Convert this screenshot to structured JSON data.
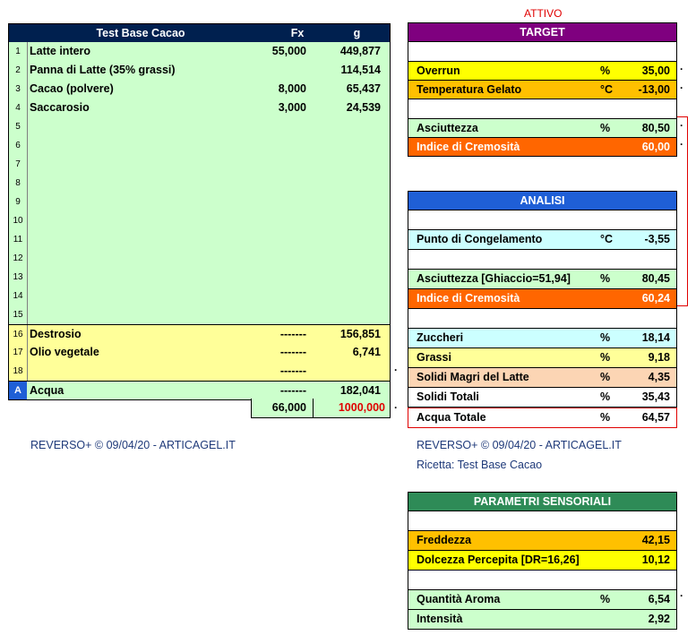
{
  "recipe": {
    "title": "Test Base Cacao",
    "col_fx": "Fx",
    "col_g": "g",
    "rows": [
      {
        "num": "1",
        "name": "Latte intero",
        "fx": "55,000",
        "g": "449,877"
      },
      {
        "num": "2",
        "name": "Panna di Latte (35% grassi)",
        "fx": "",
        "g": "114,514"
      },
      {
        "num": "3",
        "name": "Cacao (polvere)",
        "fx": "8,000",
        "g": "65,437"
      },
      {
        "num": "4",
        "name": "Saccarosio",
        "fx": "3,000",
        "g": "24,539"
      },
      {
        "num": "5",
        "name": "",
        "fx": "",
        "g": ""
      },
      {
        "num": "6",
        "name": "",
        "fx": "",
        "g": ""
      },
      {
        "num": "7",
        "name": "",
        "fx": "",
        "g": ""
      },
      {
        "num": "8",
        "name": "",
        "fx": "",
        "g": ""
      },
      {
        "num": "9",
        "name": "",
        "fx": "",
        "g": ""
      },
      {
        "num": "10",
        "name": "",
        "fx": "",
        "g": ""
      },
      {
        "num": "11",
        "name": "",
        "fx": "",
        "g": ""
      },
      {
        "num": "12",
        "name": "",
        "fx": "",
        "g": ""
      },
      {
        "num": "13",
        "name": "",
        "fx": "",
        "g": ""
      },
      {
        "num": "14",
        "name": "",
        "fx": "",
        "g": ""
      },
      {
        "num": "15",
        "name": "",
        "fx": "",
        "g": ""
      }
    ],
    "extra_rows": [
      {
        "num": "16",
        "name": "Destrosio",
        "fx": "-------",
        "g": "156,851"
      },
      {
        "num": "17",
        "name": "Olio vegetale",
        "fx": "-------",
        "g": "6,741"
      },
      {
        "num": "18",
        "name": "",
        "fx": "-------",
        "g": ""
      }
    ],
    "water_row": {
      "num": "A",
      "name": "Acqua",
      "fx": "-------",
      "g": "182,041"
    },
    "total_fx": "66,000",
    "total_g": "1000,000"
  },
  "footer_left": "REVERSO+ © 09/04/20 - ARTICAGEL.IT",
  "footer_right": "REVERSO+ © 09/04/20 - ARTICAGEL.IT",
  "ricetta": "Ricetta: Test Base Cacao",
  "attivo": "ATTIVO",
  "target": {
    "title": "TARGET",
    "overrun": {
      "label": "Overrun",
      "unit": "%",
      "value": "35,00"
    },
    "temp": {
      "label": "Temperatura Gelato",
      "unit": "°C",
      "value": "-13,00"
    },
    "asciuttezza": {
      "label": "Asciuttezza",
      "unit": "%",
      "value": "80,50"
    },
    "cremosita": {
      "label": "Indice di Cremosità",
      "unit": "",
      "value": "60,00"
    }
  },
  "analisi": {
    "title": "ANALISI",
    "congelamento": {
      "label": "Punto di Congelamento",
      "unit": "°C",
      "value": "-3,55"
    },
    "asciuttezza": {
      "label": "Asciuttezza [Ghiaccio=51,94]",
      "unit": "%",
      "value": "80,45"
    },
    "cremosita": {
      "label": "Indice di Cremosità",
      "unit": "",
      "value": "60,24"
    },
    "zuccheri": {
      "label": "Zuccheri",
      "unit": "%",
      "value": "18,14"
    },
    "grassi": {
      "label": "Grassi",
      "unit": "%",
      "value": "9,18"
    },
    "solidi_magri": {
      "label": "Solidi Magri del Latte",
      "unit": "%",
      "value": "4,35"
    },
    "solidi_totali": {
      "label": "Solidi Totali",
      "unit": "%",
      "value": "35,43"
    },
    "acqua_totale": {
      "label": "Acqua Totale",
      "unit": "%",
      "value": "64,57"
    }
  },
  "sensoriali": {
    "title": "PARAMETRI SENSORIALI",
    "freddezza": {
      "label": "Freddezza",
      "unit": "",
      "value": "42,15"
    },
    "dolcezza": {
      "label": "Dolcezza Percepita [DR=16,26]",
      "unit": "",
      "value": "10,12"
    },
    "aroma": {
      "label": "Quantità Aroma",
      "unit": "%",
      "value": "6,54"
    },
    "intensita": {
      "label": "Intensità",
      "unit": "",
      "value": "2,92"
    }
  },
  "colors": {
    "target_header": "#7f007f",
    "analisi_header": "#1f5fd6",
    "sensoriali_header": "#2e8b57",
    "recipe_header": "#00204f"
  }
}
